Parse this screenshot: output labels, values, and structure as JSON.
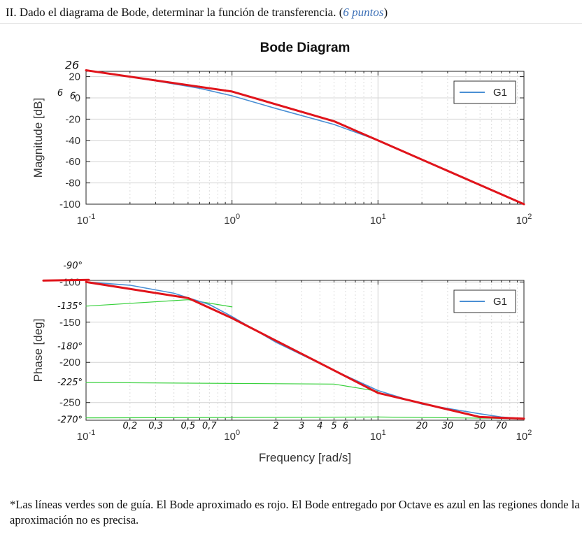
{
  "question": {
    "text_before": "II. Dado el diagrama de Bode, determinar la función de transferencia. (",
    "points": "6 puntos",
    "text_after": ")"
  },
  "footnote": "*Las líneas verdes son de guía.  El Bode aproximado es rojo.  El Bode entregado por Octave es azul en las regiones donde la aproximación no es precisa.",
  "colors": {
    "octave": "#4a8fd4",
    "approx": "#e0141b",
    "guide": "#38d13c",
    "annotation": "#111111"
  },
  "chart_data": [
    {
      "type": "line",
      "title": "Bode Diagram",
      "xlabel": "",
      "ylabel": "Magnitude [dB]",
      "xscale": "log",
      "xlim": [
        0.1,
        100
      ],
      "ylim": [
        -100,
        25
      ],
      "x_ticks": [
        0.1,
        1,
        10,
        100
      ],
      "x_tick_labels": [
        [
          "10",
          "-1"
        ],
        [
          "10",
          "0"
        ],
        [
          "10",
          "1"
        ],
        [
          "10",
          "2"
        ]
      ],
      "y_ticks": [
        20,
        0,
        -20,
        -40,
        -60,
        -80,
        -100
      ],
      "y_tick_labels": [
        "20",
        "0",
        "-20",
        "-40",
        "-60",
        "-80",
        "-100"
      ],
      "grid": true,
      "legend": {
        "entries": [
          "G1"
        ],
        "placement": "top-right"
      },
      "series": [
        {
          "name": "G1",
          "color": "#4a8fd4",
          "x": [
            0.1,
            0.3,
            0.6,
            1,
            2,
            5,
            10,
            20,
            50,
            100
          ],
          "y": [
            26,
            16,
            9,
            2,
            -10,
            -25,
            -40,
            -58,
            -82,
            -100
          ]
        },
        {
          "color": "#e0141b",
          "x": [
            0.1,
            1,
            5,
            10,
            100
          ],
          "y": [
            26,
            6,
            -22,
            -40,
            -100
          ]
        }
      ],
      "annotations": [
        {
          "text": "26",
          "x": 0.1,
          "y": 26
        },
        {
          "text": "6",
          "x": 0.1,
          "y": 6
        },
        {
          "text": "6",
          "x": 0.1,
          "y": 3
        }
      ]
    },
    {
      "type": "line",
      "title": "",
      "xlabel": "Frequency [rad/s]",
      "ylabel": "Phase [deg]",
      "xscale": "log",
      "xlim": [
        0.1,
        100
      ],
      "ylim": [
        -272,
        -98
      ],
      "x_ticks": [
        0.1,
        1,
        10,
        100
      ],
      "x_tick_labels": [
        [
          "10",
          "-1"
        ],
        [
          "10",
          "0"
        ],
        [
          "10",
          "1"
        ],
        [
          "10",
          "2"
        ]
      ],
      "y_ticks": [
        -100,
        -150,
        -200,
        -250
      ],
      "y_tick_labels": [
        "-100",
        "-150",
        "-200",
        "-250"
      ],
      "grid": true,
      "legend": {
        "entries": [
          "G1"
        ],
        "placement": "top-right"
      },
      "series": [
        {
          "name": "G1",
          "color": "#4a8fd4",
          "x": [
            0.1,
            0.2,
            0.4,
            0.7,
            1,
            2,
            5,
            10,
            20,
            50,
            70,
            100
          ],
          "y": [
            -100,
            -104,
            -114,
            -128,
            -143,
            -175,
            -210,
            -235,
            -252,
            -264,
            -268,
            -270
          ]
        },
        {
          "color": "#e0141b",
          "x": [
            0.1,
            0.5,
            1,
            10,
            50,
            100
          ],
          "y": [
            -100,
            -120,
            -145,
            -238,
            -268,
            -270
          ]
        },
        {
          "color": "#38d13c",
          "x": [
            0.1,
            0.5,
            1
          ],
          "y": [
            -130,
            -122,
            -131
          ]
        },
        {
          "color": "#38d13c",
          "x": [
            0.1,
            5,
            10
          ],
          "y": [
            -225,
            -227,
            -236
          ]
        },
        {
          "color": "#38d13c",
          "x": [
            0.1,
            10,
            100
          ],
          "y": [
            -269,
            -268,
            -270
          ]
        }
      ],
      "annotations": [
        {
          "text": "-90°",
          "x": 0.1,
          "y": -90
        },
        {
          "text": "-135°",
          "x": 0.1,
          "y": -130
        },
        {
          "text": "-180°",
          "x": 0.1,
          "y": -180
        },
        {
          "text": "-225°",
          "x": 0.1,
          "y": -225
        },
        {
          "text": "-270°",
          "x": 0.1,
          "y": -270
        },
        {
          "text": "0,2",
          "x": 0.2
        },
        {
          "text": "0,3",
          "x": 0.3
        },
        {
          "text": "0,5",
          "x": 0.5
        },
        {
          "text": "0,7",
          "x": 0.7
        },
        {
          "text": "2",
          "x": 2
        },
        {
          "text": "3",
          "x": 3
        },
        {
          "text": "4",
          "x": 4
        },
        {
          "text": "5",
          "x": 5
        },
        {
          "text": "6",
          "x": 6
        },
        {
          "text": "20",
          "x": 20
        },
        {
          "text": "30",
          "x": 30
        },
        {
          "text": "50",
          "x": 50
        },
        {
          "text": "70",
          "x": 70
        }
      ]
    }
  ]
}
